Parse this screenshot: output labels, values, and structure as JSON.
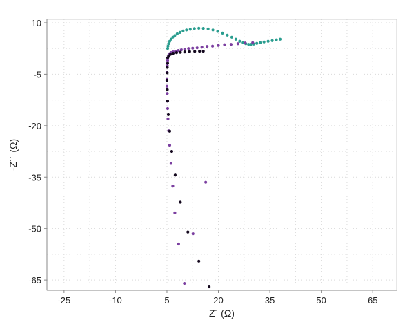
{
  "chart_data": {
    "type": "scatter",
    "title": "",
    "xlabel": "Z´ (Ω)",
    "ylabel": "-Z´´ (Ω)",
    "xlim": [
      -30,
      72
    ],
    "ylim": [
      -68,
      11
    ],
    "xticks": [
      -25,
      -10,
      5,
      20,
      35,
      50,
      65
    ],
    "yticks": [
      10,
      -5,
      -20,
      -35,
      -50,
      -65
    ],
    "grid": true,
    "legend": "none",
    "series": [
      {
        "color": "#2a9d8f",
        "x": [
          5.2,
          5.3,
          5.5,
          5.8,
          6.2,
          6.7,
          7.3,
          8.0,
          8.8,
          9.7,
          10.7,
          11.8,
          13.0,
          14.3,
          15.6,
          17.0,
          18.4,
          19.8,
          21.2,
          22.6,
          23.9,
          25.1,
          26.2,
          27.2,
          28.0,
          28.8,
          29.5,
          30.3,
          31.2,
          32.2,
          33.3,
          34.5,
          35.7,
          36.9,
          38.0
        ],
        "y": [
          2.5,
          3.2,
          3.9,
          4.6,
          5.2,
          5.8,
          6.3,
          6.8,
          7.2,
          7.6,
          7.9,
          8.1,
          8.3,
          8.4,
          8.35,
          8.2,
          7.9,
          7.5,
          7.0,
          6.4,
          5.8,
          5.2,
          4.6,
          4.2,
          3.9,
          3.7,
          3.7,
          3.8,
          4.0,
          4.2,
          4.4,
          4.6,
          4.8,
          5.0,
          5.2
        ]
      },
      {
        "color": "#7b3fa0",
        "x": [
          5.2,
          5.3,
          5.5,
          5.8,
          6.2,
          6.8,
          7.5,
          8.3,
          9.2,
          10.2,
          11.3,
          12.5,
          13.8,
          15.2,
          16.7,
          18.3,
          20.0,
          21.8,
          23.7,
          25.7,
          27.8,
          30.0,
          5.1,
          5.0,
          5.0,
          5.0,
          5.1,
          5.1,
          5.2,
          5.3,
          5.5,
          5.8,
          6.2,
          6.7,
          7.3,
          8.4,
          10.1,
          12.6,
          16.3
        ],
        "y": [
          -1.0,
          -0.1,
          0.5,
          1.0,
          1.3,
          1.5,
          1.7,
          1.9,
          2.1,
          2.3,
          2.5,
          2.6,
          2.7,
          2.9,
          3.1,
          3.2,
          3.4,
          3.6,
          3.7,
          3.9,
          4.1,
          4.2,
          -2.5,
          -4.5,
          -6.5,
          -8.5,
          -10.6,
          -12.8,
          -15.0,
          -18.0,
          -21.5,
          -25.7,
          -31.0,
          -37.6,
          -45.4,
          -54.5,
          -66.0,
          -51.5,
          -36.5
        ]
      },
      {
        "color": "#14081e",
        "x": [
          5.2,
          5.5,
          6.0,
          6.8,
          7.8,
          8.9,
          10.2,
          11.6,
          13.1,
          14.5,
          15.6,
          5.2,
          5.1,
          5.1,
          5.0,
          5.1,
          5.2,
          5.4,
          5.8,
          6.4,
          7.4,
          8.9,
          11.1,
          14.3,
          17.3
        ],
        "y": [
          -0.2,
          0.3,
          0.8,
          1.1,
          1.3,
          1.4,
          1.5,
          1.6,
          1.65,
          1.7,
          1.7,
          -1.8,
          -3.0,
          -4.6,
          -6.8,
          -9.5,
          -12.8,
          -16.8,
          -21.6,
          -27.5,
          -34.4,
          -42.3,
          -51.0,
          -59.5,
          -67.0
        ]
      }
    ]
  }
}
